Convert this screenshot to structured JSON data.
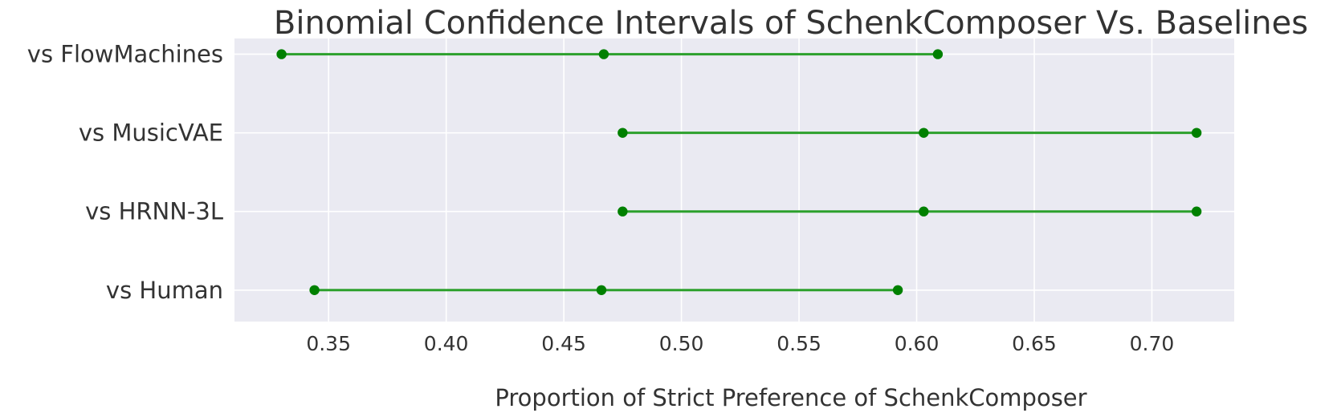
{
  "chart_data": {
    "type": "interval",
    "title": "Binomial Confidence Intervals of SchenkComposer Vs. Baselines",
    "xlabel": "Proportion of Strict Preference of SchenkComposer",
    "ylabel": "",
    "xlim": [
      0.31,
      0.735
    ],
    "x_ticks": [
      0.35,
      0.4,
      0.45,
      0.5,
      0.55,
      0.6,
      0.65,
      0.7
    ],
    "x_tick_labels": [
      "0.35",
      "0.40",
      "0.45",
      "0.50",
      "0.55",
      "0.60",
      "0.65",
      "0.70"
    ],
    "categories": [
      "vs FlowMachines",
      "vs MusicVAE",
      "vs HRNN-3L",
      "vs Human"
    ],
    "intervals": [
      {
        "category": "vs FlowMachines",
        "low": 0.33,
        "point": 0.467,
        "high": 0.609
      },
      {
        "category": "vs MusicVAE",
        "low": 0.475,
        "point": 0.603,
        "high": 0.719
      },
      {
        "category": "vs HRNN-3L",
        "low": 0.475,
        "point": 0.603,
        "high": 0.719
      },
      {
        "category": "vs Human",
        "low": 0.344,
        "point": 0.466,
        "high": 0.592
      }
    ],
    "grid": true,
    "legend": false,
    "colors": {
      "plot_background": "#eaeaf2",
      "grid": "#ffffff",
      "series": "#008000",
      "line": "#2ca02c",
      "text": "#333333"
    }
  }
}
